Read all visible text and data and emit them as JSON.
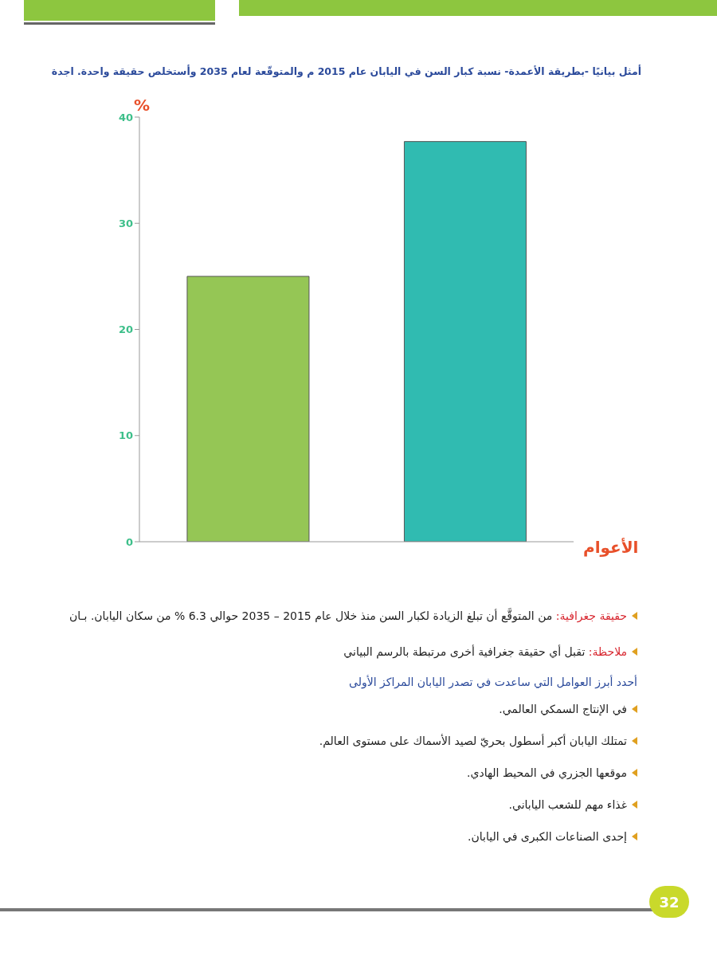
{
  "chart_data": {
    "type": "bar",
    "title": "أمثل بيانيًا -بطريقة الأعمدة- نسبة كبار السن في اليابان عام 2015 م والمتوقّعة لعام 2035 وأستخلص حقيقة واحدة. اجدة",
    "ylabel": "%",
    "xlabel": "الأعوام",
    "categories": [
      null,
      null
    ],
    "values": [
      25,
      37.7
    ],
    "colors": [
      "#95c655",
      "#30bbb1"
    ],
    "ylim": [
      0,
      40
    ],
    "yticks": [
      0,
      10,
      20,
      30,
      40
    ],
    "grid": false,
    "annotations": [
      "حقيقة جغرافية: من المتوقَّع أن تبلغ الزيادة لكبار السن منذ خلال عام 2015 – 2035 حوالي 6.3 % من سكان اليابان. بـان",
      "ملاحظة: تقبل أي حقيقة جغرافية أخرى مرتبطة بالرسم البياني",
      "أحدد أبرز العوامل التي ساعدت في تصدر اليابان المراكز الأولى",
      "في الإنتاج السمكي العالمي.",
      "تمتلك اليابان أكبر أسطول بحريّ لصيد الأسماك على مستوى العالم.",
      "موقعها الجزري في المحيط الهادي.",
      "غذاء مهم للشعب الياباني.",
      "إحدى الصناعات الكبرى في اليابان.",
      "32"
    ]
  }
}
